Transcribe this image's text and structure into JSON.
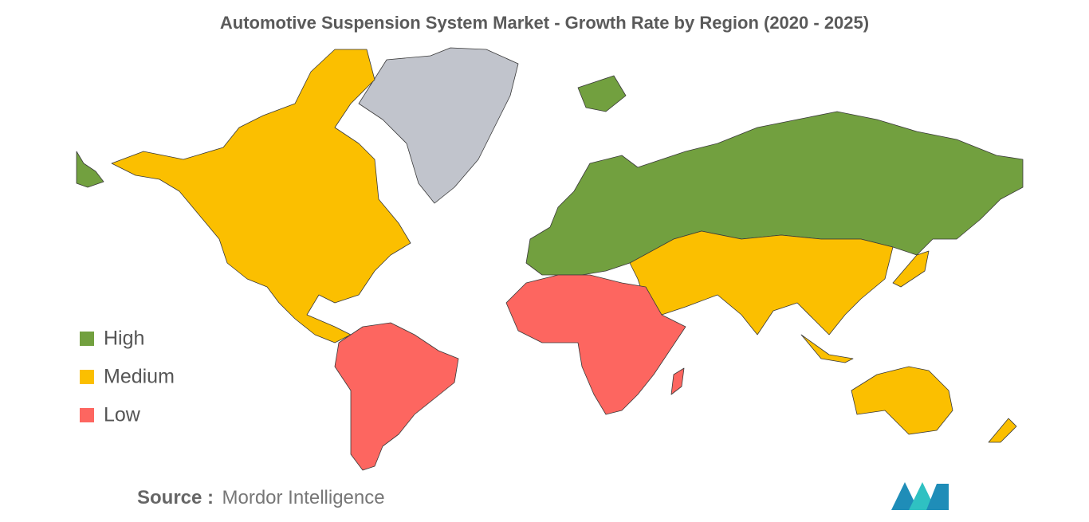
{
  "title": "Automotive Suspension System Market - Growth Rate by Region (2020 - 2025)",
  "legend": {
    "items": [
      {
        "name": "High",
        "color": "#72a03f"
      },
      {
        "name": "Medium",
        "color": "#fbbf00"
      },
      {
        "name": "Low",
        "color": "#fd6660"
      }
    ]
  },
  "source": {
    "label": "Source :",
    "text": "Mordor Intelligence"
  }
}
